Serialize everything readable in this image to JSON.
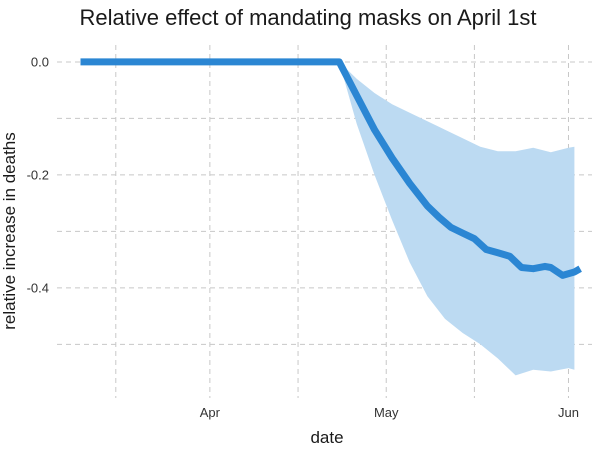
{
  "chart_data": {
    "type": "line",
    "title": "Relative effect of mandating masks on April 1st",
    "xlabel": "date",
    "ylabel": "relative increase in deaths",
    "x_ticks": [
      {
        "date": "2020-04-01",
        "label": "Apr"
      },
      {
        "date": "2020-05-01",
        "label": "May"
      },
      {
        "date": "2020-06-01",
        "label": "Jun"
      }
    ],
    "x_minor_ticks": [
      "2020-03-16",
      "2020-04-16",
      "2020-05-16"
    ],
    "y_ticks": [
      {
        "value": 0.0,
        "label": "0.0"
      },
      {
        "value": -0.2,
        "label": "-0.2"
      },
      {
        "value": -0.4,
        "label": "-0.4"
      }
    ],
    "y_minor_ticks": [
      -0.1,
      -0.3,
      -0.5
    ],
    "xlim": [
      "2020-03-06",
      "2020-06-05"
    ],
    "ylim": [
      -0.595,
      0.03
    ],
    "grid": true,
    "colors": {
      "line": "#2b86d3",
      "band": "#bcdaf2"
    },
    "series": [
      {
        "type": "line",
        "x": [
          "2020-03-10",
          "2020-04-01",
          "2020-04-23",
          "2020-04-26",
          "2020-04-29",
          "2020-05-02",
          "2020-05-05",
          "2020-05-08",
          "2020-05-10",
          "2020-05-12",
          "2020-05-14",
          "2020-05-16",
          "2020-05-18",
          "2020-05-20",
          "2020-05-22",
          "2020-05-24",
          "2020-05-26",
          "2020-05-28",
          "2020-05-29",
          "2020-05-31",
          "2020-06-02",
          "2020-06-03"
        ],
        "y": [
          0.0,
          0.0,
          0.0,
          -0.06,
          -0.12,
          -0.17,
          -0.215,
          -0.255,
          -0.275,
          -0.293,
          -0.303,
          -0.313,
          -0.332,
          -0.338,
          -0.344,
          -0.364,
          -0.366,
          -0.362,
          -0.364,
          -0.378,
          -0.372,
          -0.366
        ]
      },
      {
        "type": "band",
        "x": [
          "2020-04-23",
          "2020-04-26",
          "2020-04-29",
          "2020-05-02",
          "2020-05-05",
          "2020-05-08",
          "2020-05-11",
          "2020-05-14",
          "2020-05-17",
          "2020-05-20",
          "2020-05-23",
          "2020-05-26",
          "2020-05-29",
          "2020-06-01",
          "2020-06-02"
        ],
        "upper": [
          0.0,
          -0.03,
          -0.055,
          -0.075,
          -0.09,
          -0.105,
          -0.12,
          -0.135,
          -0.15,
          -0.158,
          -0.158,
          -0.152,
          -0.16,
          -0.152,
          -0.15
        ],
        "lower": [
          0.0,
          -0.11,
          -0.2,
          -0.28,
          -0.355,
          -0.415,
          -0.455,
          -0.48,
          -0.5,
          -0.525,
          -0.555,
          -0.545,
          -0.548,
          -0.542,
          -0.545
        ]
      }
    ]
  }
}
